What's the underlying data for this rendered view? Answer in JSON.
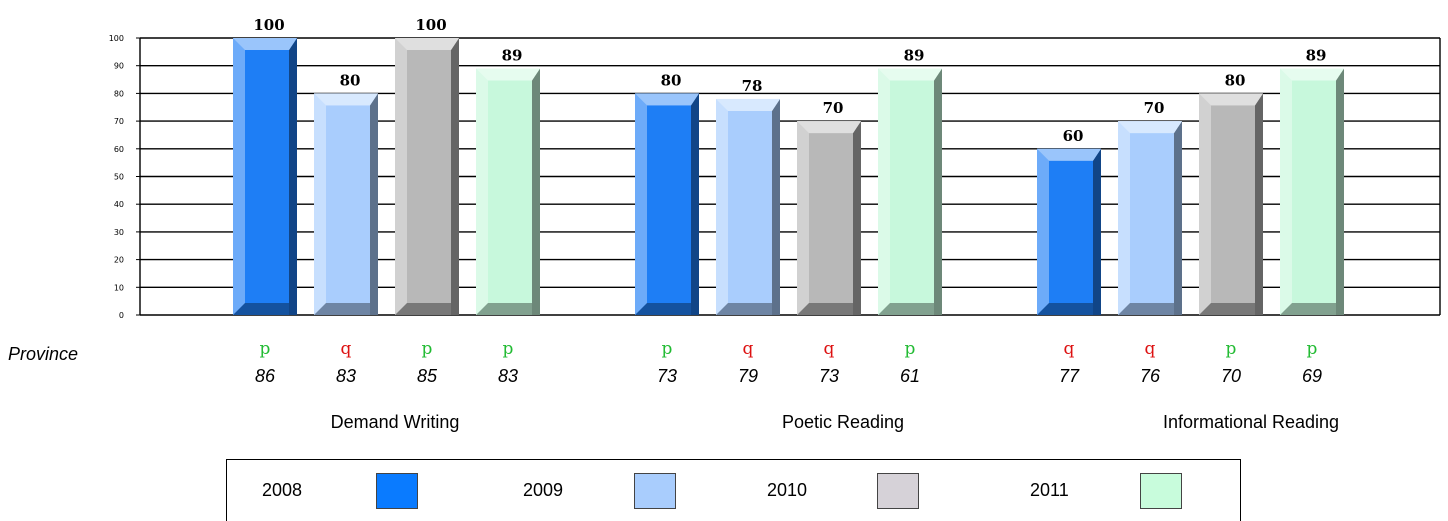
{
  "chart_data": {
    "type": "bar",
    "categories": [
      "Demand Writing",
      "Poetic Reading",
      "Informational Reading"
    ],
    "series": [
      {
        "name": "2008",
        "values": [
          100,
          80,
          60
        ],
        "color": "#1e7ef5"
      },
      {
        "name": "2009",
        "values": [
          80,
          78,
          70
        ],
        "color": "#a9cdfd"
      },
      {
        "name": "2010",
        "values": [
          100,
          70,
          80
        ],
        "color": "#b8b8b8"
      },
      {
        "name": "2011",
        "values": [
          89,
          89,
          89
        ],
        "color": "#c7f8dc"
      }
    ],
    "ylim": [
      0,
      100
    ],
    "yticks": [
      "0",
      "10",
      "20",
      "30",
      "40",
      "50",
      "60",
      "70",
      "80",
      "90",
      "100"
    ],
    "grid": true,
    "province_label": "Province",
    "province_values": [
      [
        "86",
        "83",
        "85",
        "83"
      ],
      [
        "73",
        "79",
        "73",
        "61"
      ],
      [
        "77",
        "76",
        "70",
        "69"
      ]
    ],
    "trend_markers": [
      [
        "p",
        "q",
        "p",
        "p"
      ],
      [
        "p",
        "q",
        "q",
        "p"
      ],
      [
        "q",
        "q",
        "p",
        "p"
      ]
    ],
    "trend_colors": {
      "p": "#22bb33",
      "q": "#dd1111"
    },
    "legend": {
      "years": [
        "2008",
        "2009",
        "2010",
        "2011"
      ],
      "colors": [
        "#0a7bff",
        "#a9cdfd",
        "#d6d2d8",
        "#c8fcdc"
      ]
    }
  }
}
